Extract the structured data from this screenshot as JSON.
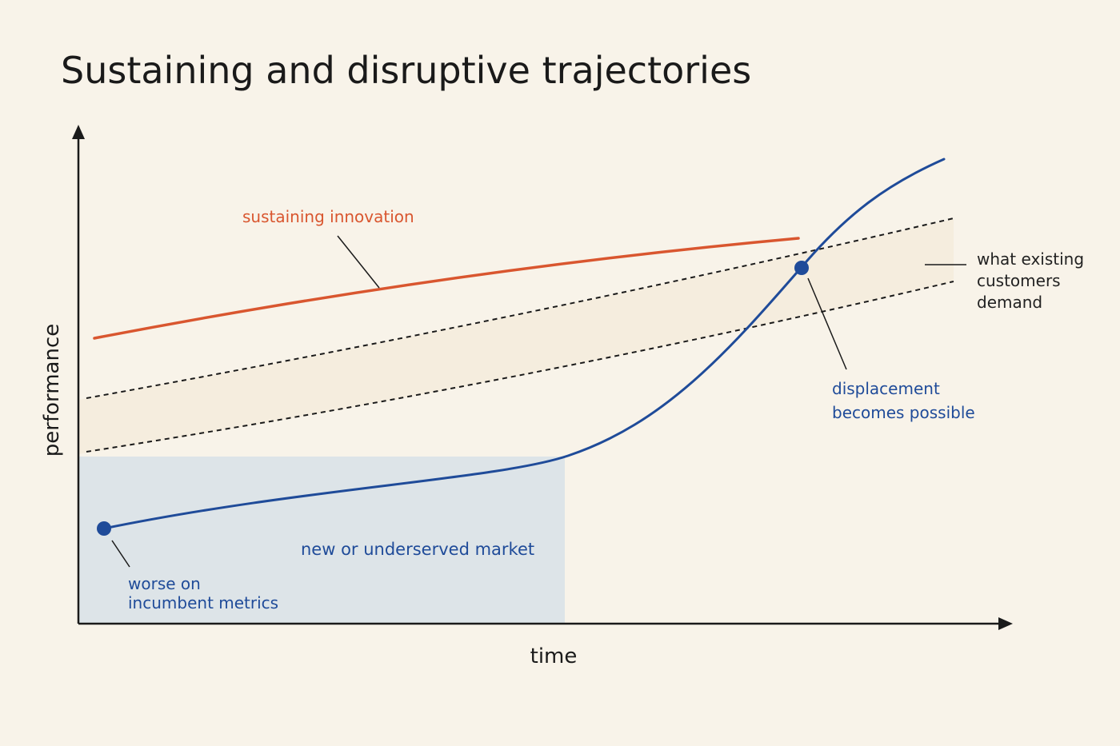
{
  "title": "Sustaining and disruptive trajectories",
  "axes": {
    "y_label": "performance",
    "x_label": "time"
  },
  "labels": {
    "sustaining": "sustaining innovation",
    "market": "new or underserved market",
    "worse_line1": "worse on",
    "worse_line2": "incumbent metrics",
    "displacement_line1": "displacement",
    "displacement_line2": "becomes possible",
    "demand_line1": "what existing",
    "demand_line2": "customers",
    "demand_line3": "demand"
  },
  "colors": {
    "background": "#f8f3e9",
    "sustaining_line": "#d9562f",
    "disruptive_line": "#1f4b99",
    "market_region": "#dde4e8",
    "demand_band": "#f4ecdd",
    "text": "#1a1a1a"
  }
}
